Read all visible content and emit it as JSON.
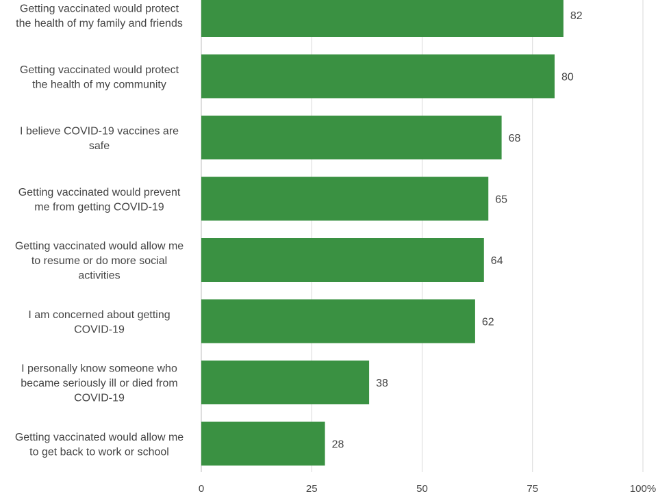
{
  "chart_data": {
    "type": "bar",
    "orientation": "horizontal",
    "categories": [
      [
        "Getting vaccinated would protect",
        "the health of my family and friends"
      ],
      [
        "Getting vaccinated would protect",
        "the health of my community"
      ],
      [
        "I believe COVID-19 vaccines are",
        "safe"
      ],
      [
        "Getting vaccinated would prevent",
        "me from getting COVID-19"
      ],
      [
        "Getting vaccinated would allow me",
        "to resume or do more social",
        "activities"
      ],
      [
        "I am concerned about getting",
        "COVID-19"
      ],
      [
        "I personally know someone who",
        "became seriously ill or died from",
        "COVID-19"
      ],
      [
        "Getting vaccinated would allow me",
        "to get back to work or school"
      ]
    ],
    "values": [
      82,
      80,
      68,
      65,
      64,
      62,
      38,
      28
    ],
    "value_labels": [
      "82",
      "80",
      "68",
      "65",
      "64",
      "62",
      "38",
      "28"
    ],
    "xlim": [
      0,
      100
    ],
    "x_ticks": [
      0,
      25,
      50,
      75,
      100
    ],
    "x_tick_labels": [
      "0",
      "25",
      "50",
      "75",
      "100%"
    ],
    "grid": true,
    "bar_color": "#3a9142",
    "grid_color": "#d9d9d9",
    "text_color": "#444444"
  }
}
